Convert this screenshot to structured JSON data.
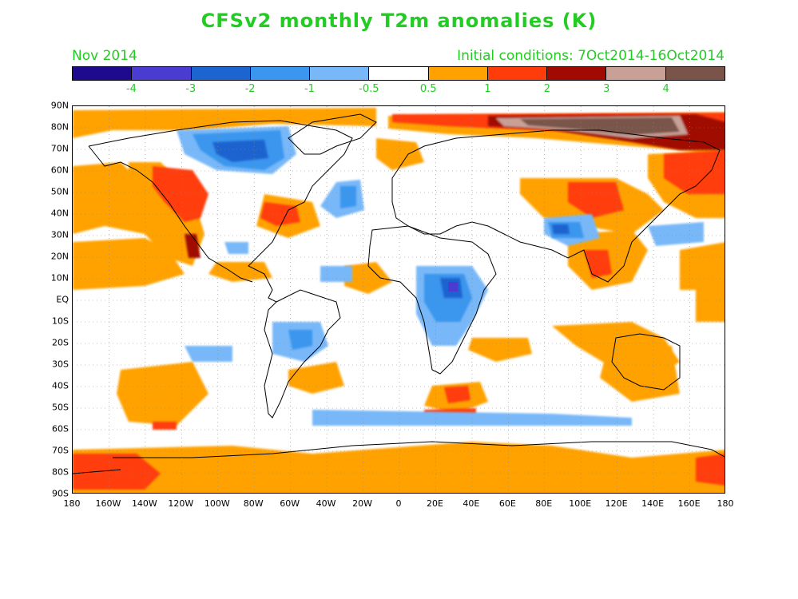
{
  "title": "CFSv2 monthly T2m anomalies (K)",
  "subtitle_left": "Nov 2014",
  "subtitle_right": "Initial conditions: 7Oct2014-16Oct2014",
  "colorbar": {
    "colors": [
      "#1e0a8c",
      "#4a3cd0",
      "#1c64d0",
      "#3a96ee",
      "#78b8f8",
      "#ffffff",
      "#ffa200",
      "#ff3c0a",
      "#a00a00",
      "#c8a096",
      "#7a5448"
    ],
    "ticks": [
      "-4",
      "-3",
      "-2",
      "-1",
      "-0.5",
      "0.5",
      "1",
      "2",
      "3",
      "4"
    ]
  },
  "lat_labels": [
    "90N",
    "80N",
    "70N",
    "60N",
    "50N",
    "40N",
    "30N",
    "20N",
    "10N",
    "EQ",
    "10S",
    "20S",
    "30S",
    "40S",
    "50S",
    "60S",
    "70S",
    "80S",
    "90S"
  ],
  "lon_labels": [
    "180",
    "160W",
    "140W",
    "120W",
    "100W",
    "80W",
    "60W",
    "40W",
    "20W",
    "0",
    "20E",
    "40E",
    "60E",
    "80E",
    "100E",
    "120E",
    "140E",
    "160E",
    "180"
  ]
}
